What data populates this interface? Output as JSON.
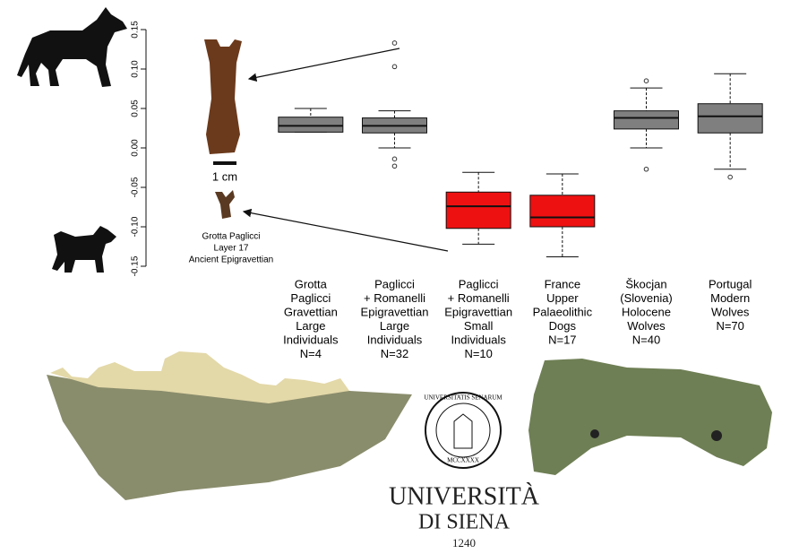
{
  "chart_data": {
    "type": "boxplot",
    "categories": [
      [
        "Grotta",
        "Paglicci",
        "Gravettian",
        "Large",
        "Individuals",
        "N=4"
      ],
      [
        "Paglicci",
        "+ Romanelli",
        "Epigravettian",
        "Large",
        "Individuals",
        "N=32"
      ],
      [
        "Paglicci",
        "+ Romanelli",
        "Epigravettian",
        "Small",
        "Individuals",
        "N=10"
      ],
      [
        "France",
        "Upper",
        "Palaeolithic",
        "Dogs",
        "N=17"
      ],
      [
        "Škocjan",
        "(Slovenia)",
        "Holocene",
        "Wolves",
        "N=40"
      ],
      [
        "Portugal",
        "Modern",
        "Wolves",
        "N=70"
      ]
    ],
    "boxes": [
      {
        "min": 0.02,
        "q1": 0.02,
        "median": 0.028,
        "q3": 0.039,
        "max": 0.05,
        "outliers": [],
        "color": "#7f7f7f"
      },
      {
        "min": 0.0,
        "q1": 0.019,
        "median": 0.028,
        "q3": 0.038,
        "max": 0.047,
        "outliers": [
          0.133,
          0.103,
          -0.014,
          -0.023
        ],
        "color": "#7f7f7f"
      },
      {
        "min": -0.122,
        "q1": -0.102,
        "median": -0.074,
        "q3": -0.056,
        "max": -0.031,
        "outliers": [],
        "color": "#ee1111"
      },
      {
        "min": -0.138,
        "q1": -0.1,
        "median": -0.088,
        "q3": -0.06,
        "max": -0.033,
        "outliers": [],
        "color": "#ee1111"
      },
      {
        "min": 0.0,
        "q1": 0.024,
        "median": 0.038,
        "q3": 0.047,
        "max": 0.076,
        "outliers": [
          0.085,
          -0.027
        ],
        "color": "#7f7f7f"
      },
      {
        "min": -0.027,
        "q1": 0.019,
        "median": 0.04,
        "q3": 0.056,
        "max": 0.094,
        "outliers": [
          -0.037
        ],
        "color": "#7f7f7f"
      }
    ],
    "ylim": [
      -0.15,
      0.15
    ],
    "yticks": [
      -0.15,
      {
        "value": -0.1,
        "label": "-0.10"
      },
      -0.05,
      {
        "value": 0,
        "label": "0.00"
      },
      0.05,
      {
        "value": 0.1,
        "label": "0.10"
      },
      0.15
    ]
  },
  "figure": {
    "scale_label": "1 cm",
    "specimen": [
      "Grotta Paglicci",
      "Layer 17",
      "Ancient Epigravettian"
    ],
    "logo": {
      "seal_top": "UNIVERSITATIS SENARUM",
      "seal_bottom": "MCCXXXX",
      "name": "UNIVERSITÀ",
      "place": "DI SIENA",
      "year": "1240"
    }
  }
}
